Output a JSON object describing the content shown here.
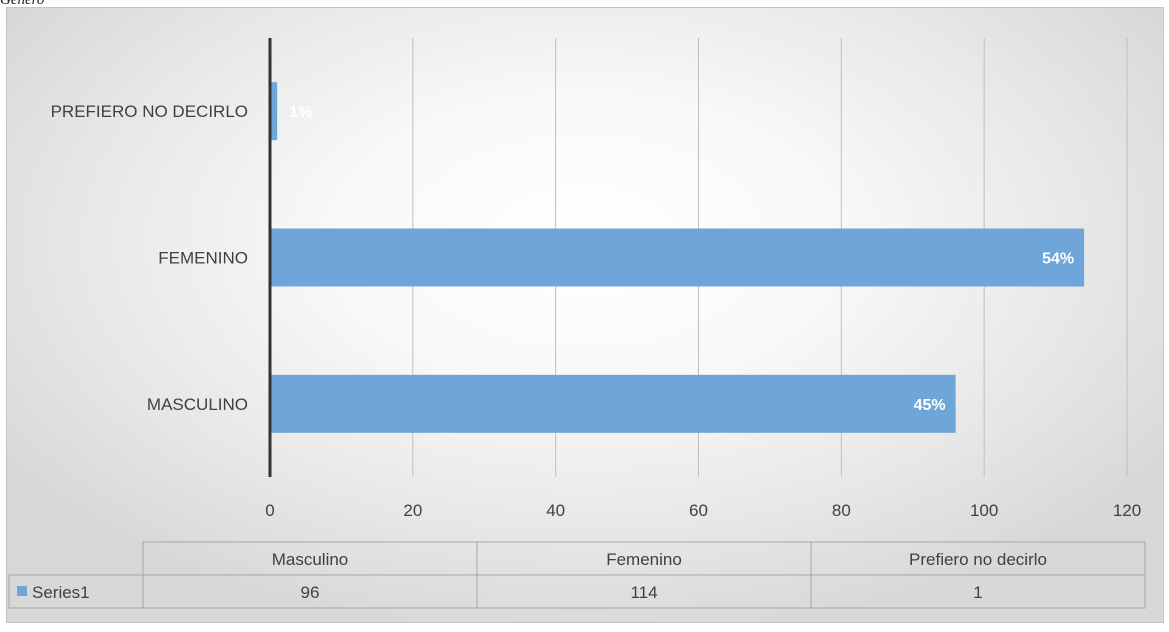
{
  "caption": "Género",
  "chart_data": {
    "type": "bar",
    "orientation": "horizontal",
    "categories": [
      "Masculino",
      "Femenino",
      "Prefiero no decirlo"
    ],
    "axis_category_labels": [
      "MASCULINO",
      "FEMENINO",
      "PREFIERO NO DECIRLO"
    ],
    "series": [
      {
        "name": "Series1",
        "values": [
          96,
          114,
          1
        ],
        "data_labels": [
          "45%",
          "54%",
          "1%"
        ],
        "color": "#6fa6da"
      }
    ],
    "xlim": [
      0,
      120
    ],
    "x_ticks": [
      0,
      20,
      40,
      60,
      80,
      100,
      120
    ],
    "grid": true,
    "data_table": true,
    "colors": {
      "bar": "#6fa6da",
      "axis": "#404040",
      "grid": "#bfbfbf",
      "text": "#404040"
    }
  }
}
